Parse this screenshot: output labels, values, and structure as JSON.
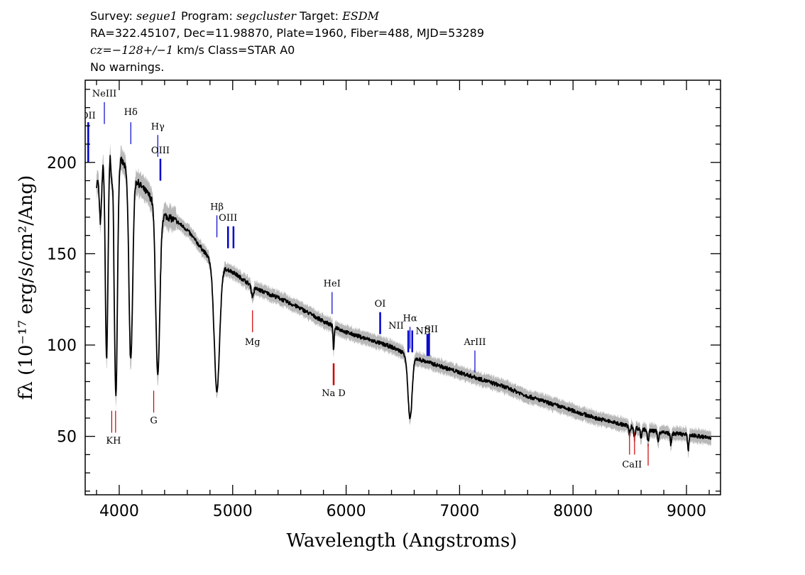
{
  "header": {
    "line1": {
      "survey_label": "Survey:",
      "survey": "segue1",
      "program_label": "Program:",
      "program": "segcluster",
      "target_label": "Target:",
      "target": "ESDM"
    },
    "line2": "RA=322.45107, Dec=11.98870, Plate=1960, Fiber=488, MJD=53289",
    "line3": {
      "cz": "cz=",
      "value": "−128+/−1",
      "units_class": " km/s Class=STAR A0"
    },
    "line4": "No warnings."
  },
  "chart_data": {
    "type": "line",
    "xlabel": "Wavelength (Angstroms)",
    "ylabel": "fλ (10⁻¹⁷ erg/s/cm²/Ang)",
    "xlim": [
      3700,
      9300
    ],
    "ylim": [
      18,
      245
    ],
    "x_ticks": [
      4000,
      5000,
      6000,
      7000,
      8000,
      9000
    ],
    "y_ticks": [
      50,
      100,
      150,
      200
    ],
    "colors": {
      "spectrum": "#000000",
      "error": "#b0b0b0",
      "emission": "#0000cc",
      "absorption": "#cc0000"
    },
    "continuum": [
      [
        3800,
        188
      ],
      [
        3870,
        206
      ],
      [
        3950,
        210
      ],
      [
        4000,
        203
      ],
      [
        4050,
        198
      ],
      [
        4150,
        190
      ],
      [
        4250,
        183
      ],
      [
        4400,
        171
      ],
      [
        4500,
        168
      ],
      [
        4600,
        163
      ],
      [
        4700,
        155
      ],
      [
        4800,
        147
      ],
      [
        4900,
        143
      ],
      [
        5000,
        140
      ],
      [
        5200,
        131
      ],
      [
        5400,
        126
      ],
      [
        5600,
        120
      ],
      [
        5800,
        113
      ],
      [
        6000,
        107
      ],
      [
        6200,
        103
      ],
      [
        6400,
        99
      ],
      [
        6600,
        93
      ],
      [
        6800,
        89
      ],
      [
        7000,
        85
      ],
      [
        7200,
        81
      ],
      [
        7400,
        77
      ],
      [
        7600,
        72
      ],
      [
        7800,
        68
      ],
      [
        8000,
        64
      ],
      [
        8200,
        60
      ],
      [
        8400,
        57
      ],
      [
        8600,
        54
      ],
      [
        8800,
        52
      ],
      [
        9000,
        51
      ],
      [
        9220,
        49
      ]
    ],
    "absorption_features": [
      {
        "center": 3835,
        "depth": 0.15,
        "width": 10
      },
      {
        "center": 3889,
        "depth": 0.55,
        "width": 12
      },
      {
        "center": 3933,
        "depth": 0.08,
        "width": 6
      },
      {
        "center": 3970,
        "depth": 0.65,
        "width": 14
      },
      {
        "center": 4102,
        "depth": 0.53,
        "width": 16
      },
      {
        "center": 4340,
        "depth": 0.53,
        "width": 18
      },
      {
        "center": 4861,
        "depth": 0.48,
        "width": 24
      },
      {
        "center": 5175,
        "depth": 0.04,
        "width": 10
      },
      {
        "center": 5890,
        "depth": 0.12,
        "width": 5
      },
      {
        "center": 6563,
        "depth": 0.37,
        "width": 18
      },
      {
        "center": 8498,
        "depth": 0.08,
        "width": 6
      },
      {
        "center": 8542,
        "depth": 0.1,
        "width": 6
      },
      {
        "center": 8600,
        "depth": 0.09,
        "width": 6
      },
      {
        "center": 8662,
        "depth": 0.12,
        "width": 6
      },
      {
        "center": 8750,
        "depth": 0.1,
        "width": 6
      },
      {
        "center": 8863,
        "depth": 0.12,
        "width": 6
      },
      {
        "center": 9015,
        "depth": 0.16,
        "width": 6
      }
    ],
    "emission_lines": [
      {
        "label": "OII",
        "wavelength": 3727,
        "flux_top": 222,
        "flux_bottom": 200,
        "thick": true,
        "clip": true
      },
      {
        "label": "NeIII",
        "wavelength": 3869,
        "flux_top": 233,
        "flux_bottom": 221,
        "thick": false
      },
      {
        "label": "Hδ",
        "wavelength": 4102,
        "flux_top": 222,
        "flux_bottom": 210,
        "thick": false
      },
      {
        "label": "Hγ",
        "wavelength": 4340,
        "flux_top": 215,
        "flux_bottom": 203,
        "thick": false
      },
      {
        "label": "OIII",
        "wavelength": 4363,
        "flux_top": 202,
        "flux_bottom": 190,
        "thick": true
      },
      {
        "label": "Hβ",
        "wavelength": 4861,
        "flux_top": 171,
        "flux_bottom": 159,
        "thick": false
      },
      {
        "label": "OIII",
        "wavelength": 4959,
        "flux_top": 165,
        "flux_bottom": 153,
        "thick": true
      },
      {
        "label": "",
        "wavelength": 5007,
        "flux_top": 165,
        "flux_bottom": 153,
        "thick": true
      },
      {
        "label": "HeI",
        "wavelength": 5876,
        "flux_top": 129,
        "flux_bottom": 117,
        "thick": false
      },
      {
        "label": "OI",
        "wavelength": 6300,
        "flux_top": 118,
        "flux_bottom": 106,
        "thick": true
      },
      {
        "label": "NII",
        "wavelength": 6548,
        "flux_top": 108,
        "flux_bottom": 96,
        "thick": true
      },
      {
        "label": "Hα",
        "wavelength": 6563,
        "flux_top": 110,
        "flux_bottom": 98,
        "thick": false
      },
      {
        "label": "",
        "wavelength": 6583,
        "flux_top": 108,
        "flux_bottom": 96,
        "thick": true
      },
      {
        "label": "NII",
        "wavelength": 6716,
        "flux_top": 106,
        "flux_bottom": 94,
        "thick": true
      },
      {
        "label": "SII",
        "wavelength": 6731,
        "flux_top": 106,
        "flux_bottom": 94,
        "thick": true
      },
      {
        "label": "ArIII",
        "wavelength": 7135,
        "flux_top": 97,
        "flux_bottom": 85,
        "thick": false
      }
    ],
    "absorption_lines": [
      {
        "label": "",
        "wavelength": 3934,
        "flux_top": 64,
        "flux_bottom": 52,
        "thick": false
      },
      {
        "label": "",
        "wavelength": 3968,
        "flux_top": 64,
        "flux_bottom": 52,
        "thick": false
      },
      {
        "label": "G",
        "wavelength": 4304,
        "flux_top": 75,
        "flux_bottom": 63,
        "thick": false
      },
      {
        "label": "Mg",
        "wavelength": 5175,
        "flux_top": 119,
        "flux_bottom": 107,
        "thick": false
      },
      {
        "label": "",
        "wavelength": 5890,
        "flux_top": 90,
        "flux_bottom": 78,
        "thick": true
      },
      {
        "label": "",
        "wavelength": 8498,
        "flux_top": 52,
        "flux_bottom": 40,
        "thick": false
      },
      {
        "label": "",
        "wavelength": 8542,
        "flux_top": 52,
        "flux_bottom": 40,
        "thick": false
      },
      {
        "label": "",
        "wavelength": 8662,
        "flux_top": 46,
        "flux_bottom": 34,
        "thick": false
      }
    ],
    "line_labels": [
      {
        "text": "OII",
        "wavelength": 3727,
        "flux": 224
      },
      {
        "text": "NeIII",
        "wavelength": 3869,
        "flux": 236
      },
      {
        "text": "Hδ",
        "wavelength": 4102,
        "flux": 226
      },
      {
        "text": "Hγ",
        "wavelength": 4340,
        "flux": 218
      },
      {
        "text": "OIII",
        "wavelength": 4363,
        "flux": 205
      },
      {
        "text": "Hβ",
        "wavelength": 4861,
        "flux": 174
      },
      {
        "text": "OIII",
        "wavelength": 4959,
        "flux": 168
      },
      {
        "text": "HeI",
        "wavelength": 5876,
        "flux": 132
      },
      {
        "text": "OI",
        "wavelength": 6300,
        "flux": 121
      },
      {
        "text": "NII",
        "wavelength": 6440,
        "flux": 109
      },
      {
        "text": "Hα",
        "wavelength": 6563,
        "flux": 113
      },
      {
        "text": "NII",
        "wavelength": 6680,
        "flux": 106
      },
      {
        "text": "SII",
        "wavelength": 6750,
        "flux": 107
      },
      {
        "text": "ArIII",
        "wavelength": 7135,
        "flux": 100
      },
      {
        "text": "Mg",
        "wavelength": 5175,
        "flux": 100
      },
      {
        "text": "Na  D",
        "wavelength": 5890,
        "flux": 72
      },
      {
        "text": "G",
        "wavelength": 4304,
        "flux": 57
      },
      {
        "text": "KH",
        "wavelength": 3950,
        "flux": 46
      },
      {
        "text": "CaII",
        "wavelength": 8520,
        "flux": 33
      }
    ]
  }
}
